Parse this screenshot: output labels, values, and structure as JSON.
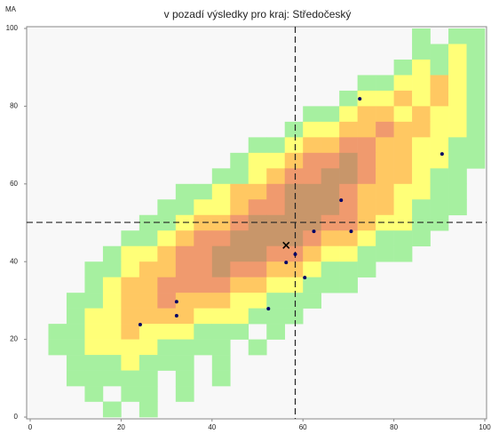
{
  "chart_data": {
    "type": "heatmap-scatter",
    "title": "v pozadí výsledky pro kraj: Středočeský",
    "ylabel": "MA",
    "xlim": [
      0,
      100
    ],
    "ylim": [
      0,
      100
    ],
    "xticks": [
      0,
      20,
      40,
      60,
      80,
      100
    ],
    "yticks": [
      0,
      20,
      40,
      60,
      80,
      100
    ],
    "background": {
      "colors": [
        "#f8f8f8",
        "#a6f0a0",
        "#ffff78",
        "#ffc862",
        "#f09a6e",
        "#c8966a"
      ],
      "z": [
        [
          0,
          0,
          0,
          0,
          0,
          0,
          0,
          0,
          0,
          0,
          0,
          0,
          0,
          0,
          0,
          0,
          0,
          0,
          0,
          0,
          0,
          1,
          0,
          1,
          1
        ],
        [
          0,
          0,
          0,
          0,
          0,
          0,
          0,
          0,
          0,
          0,
          0,
          0,
          0,
          0,
          0,
          0,
          0,
          0,
          0,
          0,
          0,
          1,
          1,
          2,
          1
        ],
        [
          0,
          0,
          0,
          0,
          0,
          0,
          0,
          0,
          0,
          0,
          0,
          0,
          0,
          0,
          0,
          0,
          0,
          0,
          0,
          0,
          1,
          2,
          1,
          2,
          1
        ],
        [
          0,
          0,
          0,
          0,
          0,
          0,
          0,
          0,
          0,
          0,
          0,
          0,
          0,
          0,
          0,
          0,
          0,
          0,
          1,
          1,
          2,
          2,
          3,
          2,
          1
        ],
        [
          0,
          0,
          0,
          0,
          0,
          0,
          0,
          0,
          0,
          0,
          0,
          0,
          0,
          0,
          0,
          0,
          0,
          1,
          2,
          2,
          3,
          2,
          3,
          2,
          1
        ],
        [
          0,
          0,
          0,
          0,
          0,
          0,
          0,
          0,
          0,
          0,
          0,
          0,
          0,
          0,
          0,
          1,
          1,
          2,
          3,
          3,
          2,
          3,
          2,
          2,
          1
        ],
        [
          0,
          0,
          0,
          0,
          0,
          0,
          0,
          0,
          0,
          0,
          0,
          0,
          0,
          0,
          1,
          2,
          2,
          3,
          3,
          4,
          3,
          3,
          2,
          2,
          1
        ],
        [
          0,
          0,
          0,
          0,
          0,
          0,
          0,
          0,
          0,
          0,
          0,
          0,
          1,
          1,
          2,
          3,
          3,
          4,
          4,
          3,
          3,
          2,
          2,
          1,
          1
        ],
        [
          0,
          0,
          0,
          0,
          0,
          0,
          0,
          0,
          0,
          0,
          0,
          1,
          2,
          2,
          3,
          4,
          4,
          5,
          4,
          3,
          3,
          2,
          2,
          1,
          1
        ],
        [
          0,
          0,
          0,
          0,
          0,
          0,
          0,
          0,
          0,
          0,
          1,
          1,
          2,
          3,
          4,
          4,
          5,
          5,
          4,
          3,
          3,
          2,
          1,
          1,
          0
        ],
        [
          0,
          0,
          0,
          0,
          0,
          0,
          0,
          0,
          1,
          1,
          2,
          3,
          3,
          4,
          5,
          5,
          5,
          4,
          3,
          3,
          2,
          2,
          1,
          1,
          0
        ],
        [
          0,
          0,
          0,
          0,
          0,
          0,
          0,
          1,
          1,
          2,
          2,
          3,
          4,
          4,
          5,
          5,
          5,
          4,
          3,
          3,
          2,
          1,
          1,
          1,
          0
        ],
        [
          0,
          0,
          0,
          0,
          0,
          0,
          1,
          1,
          2,
          3,
          3,
          4,
          5,
          5,
          5,
          5,
          4,
          4,
          3,
          2,
          2,
          1,
          1,
          0,
          0
        ],
        [
          0,
          0,
          0,
          0,
          0,
          1,
          1,
          2,
          3,
          4,
          4,
          5,
          5,
          5,
          5,
          4,
          3,
          3,
          2,
          1,
          1,
          1,
          0,
          0,
          0
        ],
        [
          0,
          0,
          0,
          0,
          1,
          2,
          2,
          3,
          4,
          4,
          5,
          5,
          5,
          4,
          4,
          3,
          2,
          2,
          1,
          1,
          1,
          0,
          0,
          0,
          0
        ],
        [
          0,
          0,
          0,
          1,
          1,
          2,
          3,
          3,
          4,
          4,
          5,
          4,
          4,
          3,
          3,
          2,
          1,
          1,
          1,
          0,
          0,
          0,
          0,
          0,
          0
        ],
        [
          0,
          0,
          0,
          1,
          2,
          3,
          3,
          4,
          4,
          4,
          4,
          3,
          3,
          2,
          2,
          1,
          1,
          1,
          0,
          0,
          0,
          0,
          0,
          0,
          0
        ],
        [
          0,
          0,
          1,
          1,
          2,
          3,
          3,
          4,
          3,
          3,
          3,
          2,
          2,
          1,
          1,
          1,
          0,
          0,
          0,
          0,
          0,
          0,
          0,
          0,
          0
        ],
        [
          0,
          0,
          1,
          2,
          2,
          3,
          3,
          3,
          3,
          2,
          2,
          2,
          1,
          1,
          1,
          0,
          0,
          0,
          0,
          0,
          0,
          0,
          0,
          0,
          0
        ],
        [
          0,
          1,
          1,
          2,
          2,
          3,
          2,
          2,
          2,
          1,
          1,
          1,
          0,
          1,
          0,
          0,
          0,
          0,
          0,
          0,
          0,
          0,
          0,
          0,
          0
        ],
        [
          0,
          1,
          1,
          2,
          2,
          2,
          2,
          1,
          1,
          1,
          1,
          0,
          1,
          0,
          0,
          0,
          0,
          0,
          0,
          0,
          0,
          0,
          0,
          0,
          0
        ],
        [
          0,
          0,
          1,
          1,
          1,
          2,
          1,
          1,
          1,
          0,
          1,
          0,
          0,
          0,
          0,
          0,
          0,
          0,
          0,
          0,
          0,
          0,
          0,
          0,
          0
        ],
        [
          0,
          0,
          1,
          1,
          1,
          1,
          1,
          0,
          1,
          0,
          1,
          0,
          0,
          0,
          0,
          0,
          0,
          0,
          0,
          0,
          0,
          0,
          0,
          0,
          0
        ],
        [
          0,
          0,
          0,
          1,
          0,
          1,
          1,
          0,
          1,
          0,
          0,
          0,
          0,
          0,
          0,
          0,
          0,
          0,
          0,
          0,
          0,
          0,
          0,
          0,
          0
        ],
        [
          0,
          0,
          0,
          0,
          1,
          0,
          1,
          0,
          0,
          0,
          0,
          0,
          0,
          0,
          0,
          0,
          0,
          0,
          0,
          0,
          0,
          0,
          0,
          0,
          0
        ]
      ]
    },
    "points": {
      "color": "#000066",
      "x": [
        24.2,
        32.2,
        32.2,
        52.4,
        56.3,
        58.3,
        60.4,
        62.4,
        70.6,
        68.4,
        72.5,
        90.6
      ],
      "y": [
        23.8,
        29.7,
        26.1,
        27.9,
        39.8,
        41.9,
        35.9,
        47.8,
        47.8,
        55.8,
        81.9,
        67.7
      ]
    },
    "cross": {
      "x": 56.3,
      "y": 44.2,
      "color": "#000000"
    },
    "crosshair": {
      "x": 58.3,
      "y": 50.1,
      "color": "#222222"
    }
  }
}
